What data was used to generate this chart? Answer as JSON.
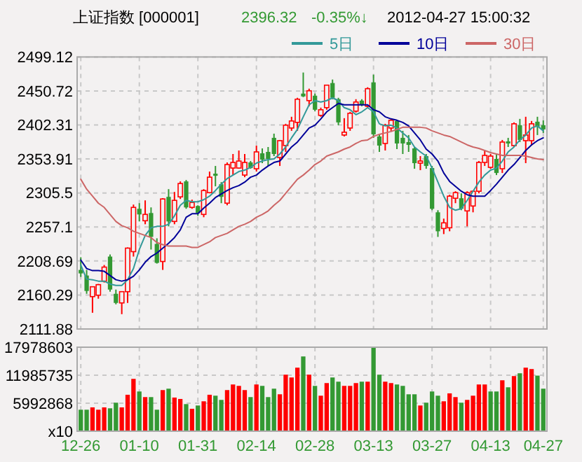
{
  "chart_data": [
    {
      "type": "candlestick",
      "title": "上证指数 [000001]",
      "annotations": [
        "2396.32",
        "-0.35%↓",
        "2012-04-27 15:00:32"
      ],
      "categories": [
        null,
        null,
        null,
        null,
        null,
        null,
        null,
        null,
        null,
        null,
        null,
        null,
        null,
        null,
        null,
        null,
        null,
        null,
        null,
        null,
        null,
        null,
        null,
        null,
        null,
        null,
        null,
        null,
        null,
        null,
        null,
        null,
        null,
        null,
        null,
        null,
        null,
        null,
        null,
        null,
        null,
        null,
        null,
        null,
        null,
        null,
        null,
        null,
        null,
        null,
        null,
        null,
        null,
        null,
        null,
        null,
        null,
        null,
        null,
        null,
        null,
        null,
        null,
        null,
        null,
        null,
        null,
        null,
        null,
        null,
        null,
        null,
        null,
        null,
        null,
        null,
        null,
        null,
        null,
        null
      ],
      "ohlc": [
        [
          2196,
          2214,
          2186,
          2191
        ],
        [
          2188,
          2196,
          2162,
          2166
        ],
        [
          2158,
          2172,
          2135,
          2172
        ],
        [
          2160,
          2176,
          2155,
          2175
        ],
        [
          2180,
          2203,
          2178,
          2200
        ],
        [
          2215,
          2218,
          2165,
          2168
        ],
        [
          2162,
          2168,
          2147,
          2149
        ],
        [
          2149,
          2165,
          2133,
          2165
        ],
        [
          2165,
          2228,
          2149,
          2227
        ],
        [
          2222,
          2289,
          2215,
          2285
        ],
        [
          2283,
          2291,
          2265,
          2275
        ],
        [
          2266,
          2295,
          2261,
          2275
        ],
        [
          2277,
          2285,
          2225,
          2243
        ],
        [
          2233,
          2241,
          2205,
          2206
        ],
        [
          2208,
          2298,
          2196,
          2297
        ],
        [
          2300,
          2311,
          2258,
          2265
        ],
        [
          2265,
          2307,
          2261,
          2295
        ],
        [
          2300,
          2322,
          2297,
          2319
        ],
        [
          2322,
          2324,
          2283,
          2285
        ],
        [
          2285,
          2296,
          2283,
          2292
        ],
        [
          2287,
          2288,
          2273,
          2277
        ],
        [
          2275,
          2311,
          2271,
          2309
        ],
        [
          2306,
          2336,
          2305,
          2328
        ],
        [
          2333,
          2344,
          2315,
          2330
        ],
        [
          2318,
          2321,
          2291,
          2300
        ],
        [
          2291,
          2349,
          2288,
          2346
        ],
        [
          2341,
          2361,
          2331,
          2349
        ],
        [
          2341,
          2366,
          2340,
          2351
        ],
        [
          2331,
          2361,
          2328,
          2349
        ],
        [
          2349,
          2351,
          2340,
          2341
        ],
        [
          2340,
          2373,
          2336,
          2364
        ],
        [
          2362,
          2369,
          2348,
          2353
        ],
        [
          2364,
          2371,
          2344,
          2354
        ],
        [
          2384,
          2390,
          2358,
          2361
        ],
        [
          2356,
          2381,
          2344,
          2380
        ],
        [
          2373,
          2404,
          2364,
          2402
        ],
        [
          2398,
          2414,
          2394,
          2408
        ],
        [
          2406,
          2441,
          2394,
          2439
        ],
        [
          2447,
          2477,
          2442,
          2443
        ],
        [
          2437,
          2454,
          2429,
          2451
        ],
        [
          2444,
          2447,
          2422,
          2424
        ],
        [
          2416,
          2427,
          2414,
          2424
        ],
        [
          2427,
          2459,
          2424,
          2459
        ],
        [
          2462,
          2467,
          2439,
          2441
        ],
        [
          2439,
          2441,
          2402,
          2406
        ],
        [
          2388,
          2412,
          2386,
          2392
        ],
        [
          2398,
          2421,
          2394,
          2419
        ],
        [
          2422,
          2439,
          2420,
          2435
        ],
        [
          2437,
          2439,
          2429,
          2431
        ],
        [
          2429,
          2456,
          2427,
          2454
        ],
        [
          2463,
          2474,
          2384,
          2389
        ],
        [
          2386,
          2389,
          2364,
          2373
        ],
        [
          2376,
          2404,
          2366,
          2402
        ],
        [
          2398,
          2411,
          2394,
          2409
        ],
        [
          2408,
          2409,
          2368,
          2376
        ],
        [
          2384,
          2394,
          2361,
          2376
        ],
        [
          2378,
          2388,
          2364,
          2374
        ],
        [
          2369,
          2371,
          2340,
          2348
        ],
        [
          2348,
          2358,
          2338,
          2351
        ],
        [
          2358,
          2361,
          2340,
          2344
        ],
        [
          2341,
          2344,
          2281,
          2283
        ],
        [
          2278,
          2281,
          2243,
          2251
        ],
        [
          2255,
          2269,
          2247,
          2263
        ],
        [
          2256,
          2303,
          2251,
          2301
        ],
        [
          2298,
          2308,
          2291,
          2306
        ],
        [
          2298,
          2305,
          2281,
          2283
        ],
        [
          2280,
          2308,
          2258,
          2306
        ],
        [
          2287,
          2309,
          2278,
          2308
        ],
        [
          2308,
          2351,
          2305,
          2349
        ],
        [
          2349,
          2366,
          2344,
          2359
        ],
        [
          2342,
          2361,
          2340,
          2358
        ],
        [
          2354,
          2361,
          2331,
          2334
        ],
        [
          2340,
          2381,
          2334,
          2378
        ],
        [
          2379,
          2384,
          2371,
          2376
        ],
        [
          2373,
          2406,
          2371,
          2404
        ],
        [
          2402,
          2411,
          2378,
          2381
        ],
        [
          2380,
          2414,
          2348,
          2388
        ],
        [
          2380,
          2408,
          2373,
          2404
        ],
        [
          2407,
          2414,
          2388,
          2400
        ],
        [
          2402,
          2409,
          2391,
          2396
        ]
      ],
      "colors": [
        "#339933",
        "#339933",
        "#ff0000",
        "#ff0000",
        "#ff0000",
        "#339933",
        "#339933",
        "#ff0000",
        "#ff0000",
        "#ff0000",
        "#339933",
        "#ff0000",
        "#339933",
        "#339933",
        "#ff0000",
        "#339933",
        "#ff0000",
        "#ff0000",
        "#339933",
        "#ff0000",
        "#339933",
        "#ff0000",
        "#ff0000",
        "#339933",
        "#339933",
        "#ff0000",
        "#ff0000",
        "#ff0000",
        "#ff0000",
        "#339933",
        "#ff0000",
        "#339933",
        "#339933",
        "#339933",
        "#ff0000",
        "#ff0000",
        "#ff0000",
        "#ff0000",
        "#339933",
        "#ff0000",
        "#339933",
        "#ff0000",
        "#ff0000",
        "#339933",
        "#339933",
        "#ff0000",
        "#ff0000",
        "#ff0000",
        "#339933",
        "#ff0000",
        "#339933",
        "#339933",
        "#ff0000",
        "#ff0000",
        "#339933",
        "#339933",
        "#339933",
        "#339933",
        "#ff0000",
        "#339933",
        "#339933",
        "#339933",
        "#ff0000",
        "#ff0000",
        "#ff0000",
        "#339933",
        "#ff0000",
        "#ff0000",
        "#ff0000",
        "#ff0000",
        "#ff0000",
        "#339933",
        "#ff0000",
        "#339933",
        "#ff0000",
        "#339933",
        "#ff0000",
        "#ff0000",
        "#339933",
        "#339933"
      ],
      "series": [
        {
          "name": "5日",
          "type": "line",
          "color": "#339999",
          "values": [
            2203,
            2183,
            2182,
            2180,
            2180,
            2176,
            2174,
            2174,
            2182,
            2198,
            2225,
            2245,
            2256,
            2258,
            2258,
            2261,
            2273,
            2288,
            2295,
            2293,
            2293,
            2296,
            2301,
            2309,
            2318,
            2326,
            2331,
            2336,
            2338,
            2342,
            2348,
            2351,
            2353,
            2354,
            2361,
            2371,
            2384,
            2396,
            2414,
            2431,
            2437,
            2435,
            2437,
            2441,
            2437,
            2427,
            2424,
            2417,
            2421,
            2427,
            2421,
            2404,
            2401,
            2402,
            2398,
            2391,
            2384,
            2371,
            2364,
            2358,
            2341,
            2321,
            2301,
            2285,
            2281,
            2283,
            2295,
            2308,
            2321,
            2331,
            2338,
            2341,
            2351,
            2364,
            2371,
            2381,
            2388,
            2398,
            2401,
            2394
          ]
        },
        {
          "name": "10日",
          "type": "line",
          "color": "#000099",
          "values": [
            2210,
            2198,
            2195,
            2195,
            2194,
            2188,
            2182,
            2180,
            2182,
            2187,
            2196,
            2207,
            2215,
            2220,
            2227,
            2234,
            2242,
            2253,
            2271,
            2276,
            2276,
            2284,
            2291,
            2299,
            2304,
            2309,
            2313,
            2316,
            2321,
            2328,
            2331,
            2338,
            2344,
            2349,
            2351,
            2361,
            2371,
            2378,
            2388,
            2398,
            2402,
            2411,
            2421,
            2427,
            2433,
            2431,
            2431,
            2431,
            2431,
            2431,
            2424,
            2421,
            2414,
            2411,
            2409,
            2406,
            2401,
            2391,
            2381,
            2368,
            2361,
            2351,
            2334,
            2322,
            2315,
            2308,
            2303,
            2301,
            2301,
            2301,
            2309,
            2318,
            2328,
            2338,
            2346,
            2356,
            2366,
            2374,
            2380,
            2384
          ]
        },
        {
          "name": "30日",
          "type": "line",
          "color": "#cc6666",
          "values": [
            2325,
            2311,
            2301,
            2291,
            2285,
            2275,
            2265,
            2259,
            2256,
            2251,
            2248,
            2245,
            2242,
            2235,
            2232,
            2230,
            2230,
            2230,
            2230,
            2228,
            2228,
            2232,
            2236,
            2242,
            2245,
            2248,
            2253,
            2258,
            2261,
            2265,
            2271,
            2275,
            2280,
            2288,
            2295,
            2305,
            2315,
            2325,
            2331,
            2338,
            2346,
            2351,
            2358,
            2361,
            2364,
            2368,
            2371,
            2376,
            2380,
            2381,
            2386,
            2389,
            2391,
            2393,
            2396,
            2399,
            2399,
            2399,
            2399,
            2398,
            2394,
            2391,
            2388,
            2386,
            2382,
            2378,
            2374,
            2371,
            2369,
            2366,
            2363,
            2361,
            2359,
            2359,
            2359,
            2359,
            2358,
            2356,
            2354,
            2353
          ]
        }
      ],
      "ylim": [
        2111.88,
        2499.12
      ],
      "yticks": [
        2111.88,
        2160.29,
        2208.69,
        2257.1,
        2305.5,
        2353.91,
        2402.31,
        2450.72,
        2499.12
      ],
      "grid": true,
      "legend": "top right",
      "tick_labels": "y"
    },
    {
      "type": "bar",
      "categories": [
        "12-26",
        null,
        null,
        null,
        null,
        null,
        null,
        null,
        null,
        null,
        "01-10",
        null,
        null,
        null,
        null,
        null,
        null,
        null,
        null,
        null,
        "01-31",
        null,
        null,
        null,
        null,
        null,
        null,
        null,
        null,
        null,
        "02-14",
        null,
        null,
        null,
        null,
        null,
        null,
        null,
        null,
        null,
        "02-28",
        null,
        null,
        null,
        null,
        null,
        null,
        null,
        null,
        null,
        "03-13",
        null,
        null,
        null,
        null,
        null,
        null,
        null,
        null,
        null,
        "03-27",
        null,
        null,
        null,
        null,
        null,
        null,
        null,
        null,
        null,
        "04-13",
        null,
        null,
        null,
        null,
        null,
        null,
        null,
        null,
        "04-27"
      ],
      "values": [
        4600000,
        4600000,
        5100000,
        4600000,
        5100000,
        4900000,
        6100000,
        5100000,
        7800000,
        11200000,
        8500000,
        7300000,
        7300000,
        4600000,
        8800000,
        9100000,
        7200000,
        6900000,
        5800000,
        4800000,
        5500000,
        6400000,
        7800000,
        7600000,
        6700000,
        8800000,
        10000000,
        9700000,
        8800000,
        7300000,
        10000000,
        9700000,
        7300000,
        9100000,
        7900000,
        12100000,
        11500000,
        13600000,
        16000000,
        12100000,
        9700000,
        7600000,
        10300000,
        11500000,
        10600000,
        9700000,
        9700000,
        10300000,
        10600000,
        10600000,
        17900000,
        12100000,
        10600000,
        10300000,
        10000000,
        9700000,
        7900000,
        7900000,
        5500000,
        6100000,
        8500000,
        7600000,
        6400000,
        8100000,
        7300000,
        6100000,
        6700000,
        7600000,
        10000000,
        10000000,
        8500000,
        8500000,
        10900000,
        9400000,
        11800000,
        12400000,
        13600000,
        13300000,
        11900000,
        9100000
      ],
      "colors": [
        "#339933",
        "#339933",
        "#ff0000",
        "#ff0000",
        "#ff0000",
        "#339933",
        "#339933",
        "#ff0000",
        "#ff0000",
        "#ff0000",
        "#339933",
        "#ff0000",
        "#339933",
        "#339933",
        "#ff0000",
        "#339933",
        "#ff0000",
        "#ff0000",
        "#339933",
        "#ff0000",
        "#339933",
        "#ff0000",
        "#ff0000",
        "#339933",
        "#339933",
        "#ff0000",
        "#ff0000",
        "#ff0000",
        "#ff0000",
        "#339933",
        "#ff0000",
        "#339933",
        "#339933",
        "#339933",
        "#ff0000",
        "#ff0000",
        "#ff0000",
        "#ff0000",
        "#339933",
        "#ff0000",
        "#339933",
        "#ff0000",
        "#ff0000",
        "#339933",
        "#339933",
        "#ff0000",
        "#ff0000",
        "#ff0000",
        "#339933",
        "#ff0000",
        "#339933",
        "#339933",
        "#ff0000",
        "#ff0000",
        "#339933",
        "#339933",
        "#339933",
        "#339933",
        "#ff0000",
        "#339933",
        "#339933",
        "#339933",
        "#ff0000",
        "#ff0000",
        "#ff0000",
        "#339933",
        "#ff0000",
        "#ff0000",
        "#ff0000",
        "#ff0000",
        "#339933",
        "#339933",
        "#ff0000",
        "#339933",
        "#ff0000",
        "#339933",
        "#ff0000",
        "#ff0000",
        "#339933",
        "#339933"
      ],
      "ylim": [
        0,
        17978603
      ],
      "yticks": [
        {
          "value": 0,
          "label": "x10"
        },
        5992868,
        11985735,
        17978603
      ],
      "grid": true
    }
  ]
}
